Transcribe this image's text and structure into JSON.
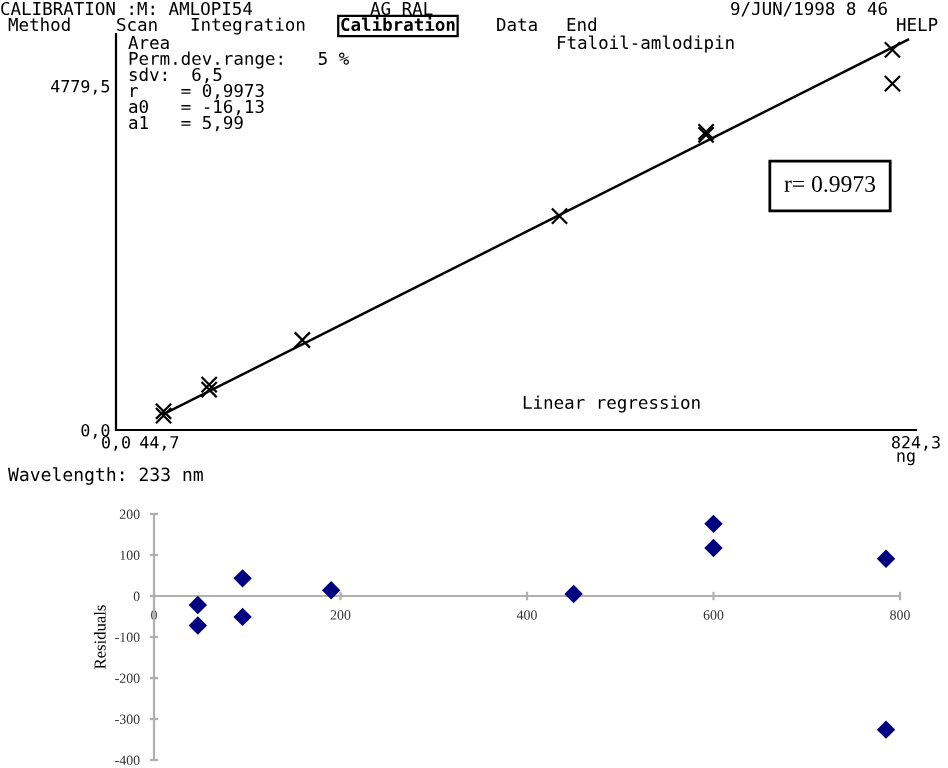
{
  "chart_data": [
    {
      "type": "scatter",
      "title": "CALIBRATION :M: AMLOPI54",
      "xlabel": "ng",
      "annotations": [
        "AG RAL",
        "9/JUN/1998 8 46",
        "Method",
        "Scan",
        "Integration",
        "Calibration",
        "Data",
        "End",
        "HELP",
        "Area",
        "Perm.dev.range:   5 %",
        "sdv:  6,5",
        "r    = 0,9973",
        "a0   = -16,13",
        "a1   = 5,99",
        "Ftaloil-amlodipin",
        "r= 0.9973",
        "Linear regression",
        "Wavelength: 233 nm"
      ],
      "series": [
        {
          "type": "scatter",
          "color": "#000000",
          "marker": "cross",
          "x": [
            49,
            49,
            96,
            96,
            192,
            457,
            608,
            608,
            800,
            800
          ],
          "values": [
            260,
            200,
            630,
            560,
            1250,
            2970,
            4140,
            4100,
            5280,
            4810
          ]
        },
        {
          "type": "line",
          "color": "#000000",
          "x": [
            49,
            816
          ],
          "values": [
            220,
            5420
          ]
        }
      ],
      "xlim": [
        0,
        824.3
      ],
      "ylim": [
        0,
        5500
      ],
      "xticks": [
        {
          "value": 0,
          "label": "0,0"
        },
        {
          "value": 44.7,
          "label": "44,7"
        },
        {
          "value": 824.3,
          "label": "824,3"
        }
      ],
      "yticks": [
        {
          "value": 0,
          "label": "0,0"
        },
        {
          "value": 4779.5,
          "label": "4779,5"
        }
      ],
      "grid": false
    },
    {
      "type": "scatter",
      "ylabel": "Residuals",
      "series": [
        {
          "type": "scatter",
          "color": "#000080",
          "marker": "diamond",
          "x": [
            47,
            47,
            95,
            95,
            190,
            450,
            600,
            600,
            785,
            785
          ],
          "values": [
            -22,
            -72,
            43,
            -51,
            14,
            5,
            176,
            117,
            91,
            -326
          ]
        }
      ],
      "xlim": [
        0,
        800
      ],
      "ylim": [
        -400,
        200
      ],
      "xticks": [
        0,
        200,
        400,
        600,
        800
      ],
      "yticks": [
        200,
        100,
        0,
        -100,
        -200,
        -300,
        -400
      ],
      "grid": false
    }
  ]
}
